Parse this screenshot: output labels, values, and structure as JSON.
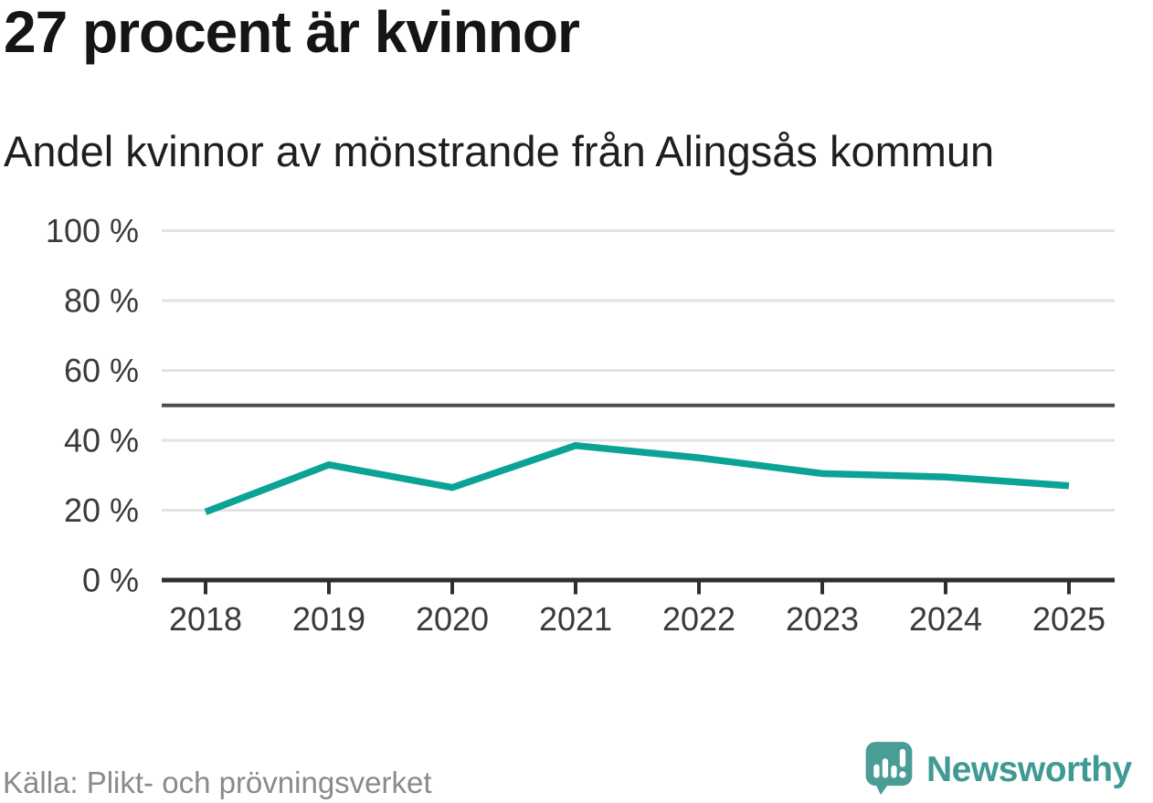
{
  "title": "27 procent är kvinnor",
  "subtitle": "Andel kvinnor av mönstrande från Alingsås kommun",
  "source": "Källa: Plikt- och prövningsverket",
  "branding": {
    "name": "Newsworthy",
    "icon": "newsworthy-speech-bubble-bar-chart-icon",
    "icon_color": "#4a9c96",
    "wordmark_color": "#3f9a94"
  },
  "colors": {
    "line": "#0aa396",
    "grid": "#e2e2e2",
    "reference_line": "#4d4d4d",
    "axis": "#2f2f2f",
    "tick_label": "#3a3a3a"
  },
  "chart_data": {
    "type": "line",
    "title": "27 procent är kvinnor",
    "subtitle": "Andel kvinnor av mönstrande från Alingsås kommun",
    "categories": [
      "2018",
      "2019",
      "2020",
      "2021",
      "2022",
      "2023",
      "2024",
      "2025"
    ],
    "series": [
      {
        "name": "Andel kvinnor av mönstrande",
        "values": [
          19.5,
          33,
          26.5,
          38.5,
          35,
          30.5,
          29.5,
          27
        ]
      }
    ],
    "xlabel": "",
    "ylabel": "",
    "ylim": [
      0,
      100
    ],
    "y_tick_values": [
      0,
      20,
      40,
      60,
      80,
      100
    ],
    "y_tick_suffix": " %",
    "reference_line_value": 50,
    "grid": true,
    "legend": false
  }
}
